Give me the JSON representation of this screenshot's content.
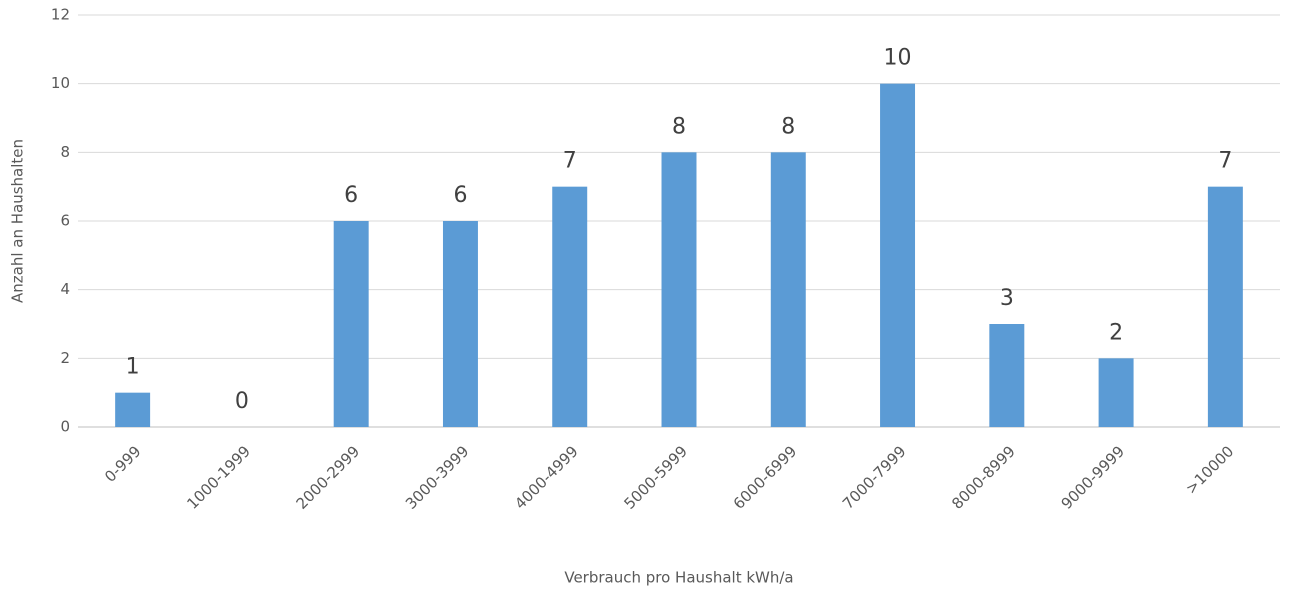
{
  "chart_data": {
    "type": "bar",
    "x_label": "Verbrauch pro Haushalt kWh/a",
    "y_label": "Anzahl an Haushalten",
    "categories": [
      "0-999",
      "1000-1999",
      "2000-2999",
      "3000-3999",
      "4000-4999",
      "5000-5999",
      "6000-6999",
      "7000-7999",
      "8000-8999",
      "9000-9999",
      ">10000"
    ],
    "values": [
      1,
      0,
      6,
      6,
      7,
      8,
      8,
      10,
      3,
      2,
      7
    ],
    "color": "#5b9bd5",
    "ylim": [
      0,
      12
    ],
    "yticks": [
      0,
      2,
      4,
      6,
      8,
      10,
      12
    ],
    "grid": true
  }
}
